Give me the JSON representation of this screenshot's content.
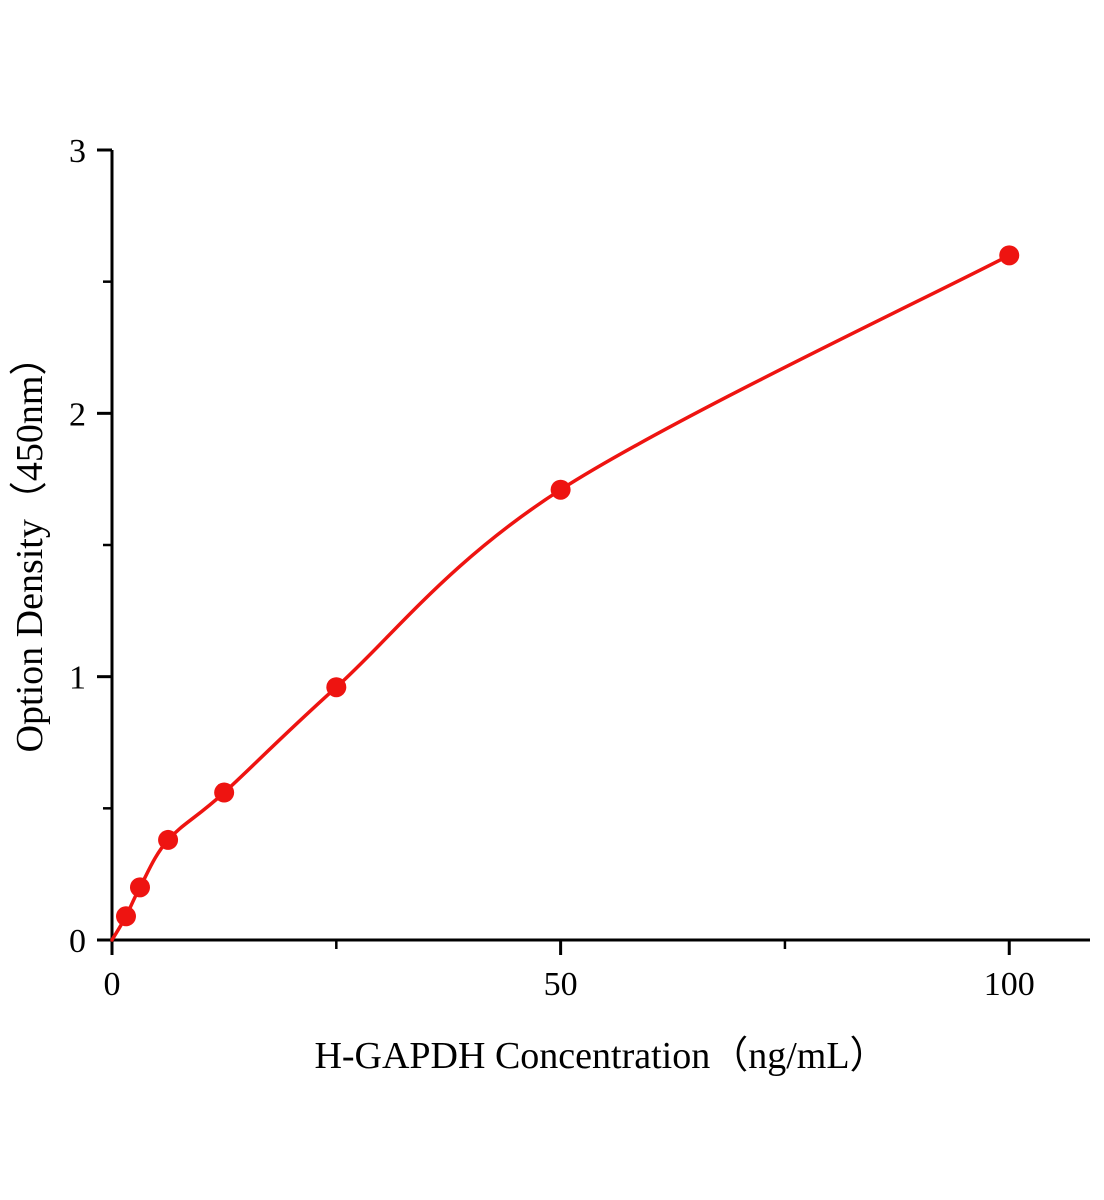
{
  "chart_data": {
    "type": "scatter",
    "title": "",
    "xlabel": "H-GAPDH Concentration（ng/mL）",
    "ylabel": "Option Density（450nm）",
    "xlim": [
      0,
      109
    ],
    "ylim": [
      0,
      3
    ],
    "x_ticks": [
      0,
      50,
      100
    ],
    "x_minor_ticks": [
      25,
      75
    ],
    "y_ticks": [
      0,
      1,
      2,
      3
    ],
    "y_minor_ticks": [
      0.5,
      1.5,
      2.5
    ],
    "grid": "off",
    "legend": "none",
    "axis_color": "#000000",
    "curve_color": "#ee1411",
    "marker_color": "#ee1411",
    "curve_start": {
      "x": 0,
      "y": 0
    },
    "points": [
      {
        "x": 1.56,
        "y": 0.09
      },
      {
        "x": 3.12,
        "y": 0.2
      },
      {
        "x": 6.25,
        "y": 0.38
      },
      {
        "x": 12.5,
        "y": 0.56
      },
      {
        "x": 25,
        "y": 0.96
      },
      {
        "x": 50,
        "y": 1.71
      },
      {
        "x": 100,
        "y": 2.6
      }
    ]
  }
}
